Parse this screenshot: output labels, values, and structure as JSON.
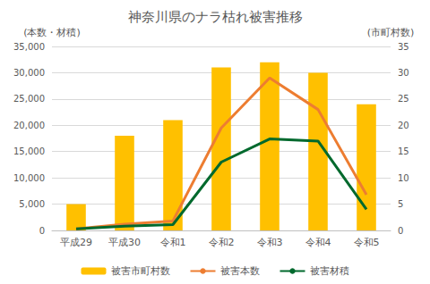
{
  "chart_data": {
    "type": "bar",
    "title": "神奈川県のナラ枯れ被害推移",
    "ylabel": "(本数・材積)",
    "y2label": "(市町村数)",
    "categories": [
      "平成29",
      "平成30",
      "令和1",
      "令和2",
      "令和3",
      "令和4",
      "令和5"
    ],
    "series": [
      {
        "name": "被害市町村数",
        "type": "bar",
        "axis": "y2",
        "color": "#FFC000",
        "values": [
          5,
          18,
          21,
          31,
          32,
          30,
          24
        ]
      },
      {
        "name": "被害本数",
        "type": "line",
        "color": "#ED7D31",
        "values": [
          300,
          1200,
          1800,
          19500,
          29000,
          23000,
          6800
        ]
      },
      {
        "name": "被害材積",
        "type": "line",
        "color": "#00692D",
        "values": [
          300,
          800,
          1100,
          13000,
          17400,
          17000,
          4000
        ]
      }
    ],
    "ylim": [
      0,
      35000
    ],
    "yticks": [
      0,
      5000,
      10000,
      15000,
      20000,
      25000,
      30000,
      35000
    ],
    "y2lim": [
      0,
      35
    ],
    "y2ticks": [
      0,
      5,
      10,
      15,
      20,
      25,
      30,
      35
    ],
    "grid": true,
    "legend": "bottom"
  }
}
